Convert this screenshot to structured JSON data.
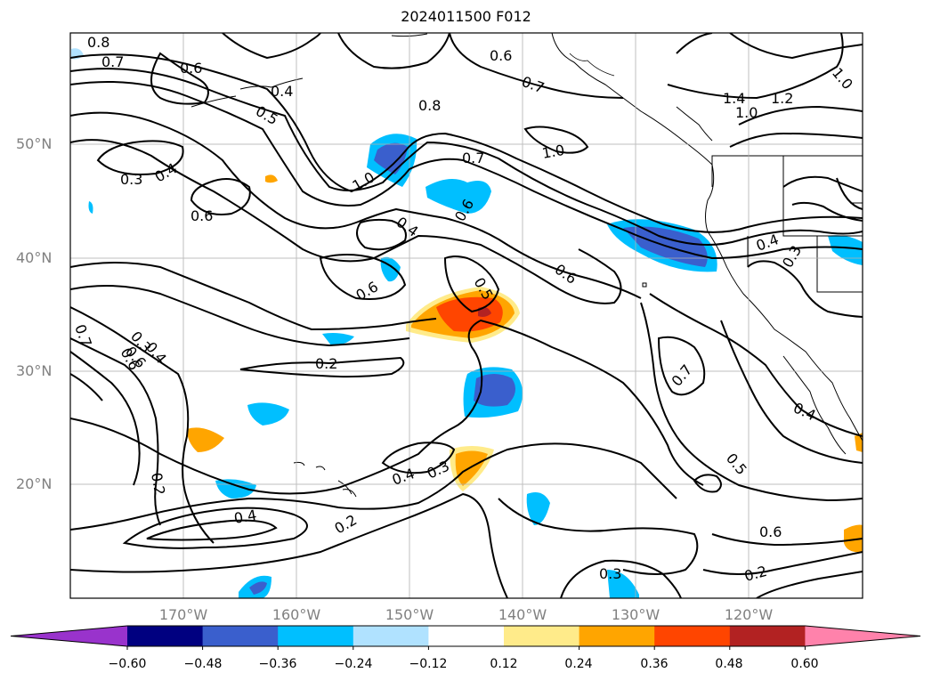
{
  "title": "2024011500 F012",
  "map": {
    "lat_ticks": [
      "50°N",
      "40°N",
      "30°N",
      "20°N"
    ],
    "lon_ticks": [
      "170°W",
      "160°W",
      "150°W",
      "140°W",
      "130°W",
      "120°W"
    ],
    "extent": {
      "lon_min": -180,
      "lon_max": -110,
      "lat_min": 10,
      "lat_max": 60
    },
    "gridlines": true,
    "projection": "PlateCarree"
  },
  "contour_labels": [
    "0.8",
    "0.7",
    "0.6",
    "0.4",
    "0.5",
    "0.6",
    "0.7",
    "0.8",
    "1.4",
    "1.2",
    "1.0",
    "1.0",
    "0.3",
    "0.4",
    "0.6",
    "1.0",
    "0.7",
    "1.0",
    "0.6",
    "0.4",
    "0.6",
    "0.6",
    "0.5",
    "0.6",
    "0.4",
    "0.3",
    "0.7",
    "0.3",
    "0.6",
    "0.4",
    "0.2",
    "0.7",
    "0.4",
    "0.5",
    "0.2",
    "0.4",
    "0.3",
    "0.4",
    "0.2",
    "0.6",
    "0.3",
    "0.2"
  ],
  "colorbar": {
    "ticks": [
      "−0.60",
      "−0.48",
      "−0.36",
      "−0.24",
      "−0.12",
      "0.12",
      "0.24",
      "0.36",
      "0.48",
      "0.60"
    ],
    "colors": {
      "min": "#9933cc",
      "bands": [
        "#000080",
        "#3a5fcd",
        "#00bfff",
        "#b0e2ff",
        "#ffffff",
        "#ffeb8a",
        "#ffa500",
        "#ff4500",
        "#b22222"
      ],
      "max": "#ff82ab"
    },
    "extend": "both"
  }
}
